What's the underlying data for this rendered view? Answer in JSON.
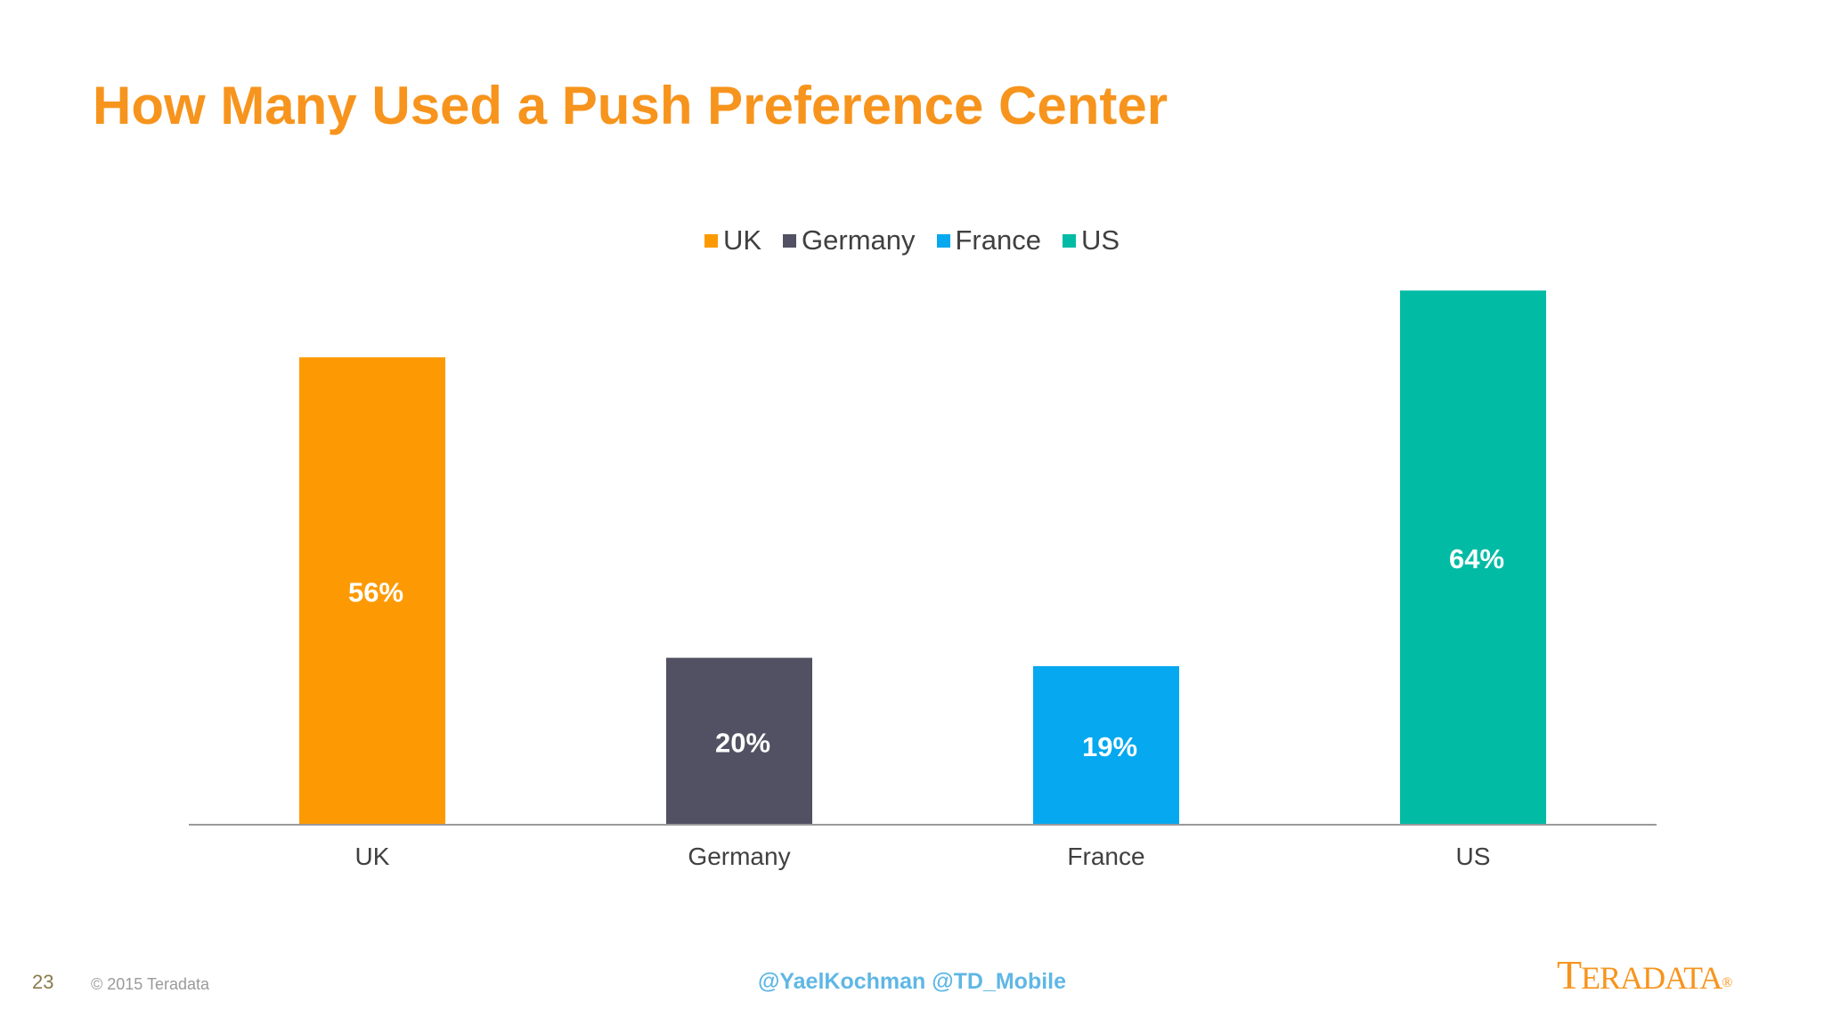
{
  "slide": {
    "title": "How Many Used a Push Preference Center",
    "page_number": "23",
    "copyright": "© 2015 Teradata",
    "handles": "@YaelKochman @TD_Mobile",
    "logo": {
      "lead": "T",
      "rest": "ERADATA",
      "mark": "®"
    }
  },
  "colors": {
    "title": "#f7941d",
    "UK": "#fd9a03",
    "Germany": "#525163",
    "France": "#06a8ef",
    "US": "#01bba5",
    "axis": "#9a9a9a"
  },
  "chart_data": {
    "type": "bar",
    "title": "",
    "categories": [
      "UK",
      "Germany",
      "France",
      "US"
    ],
    "values": [
      56,
      20,
      19,
      64
    ],
    "value_labels": [
      "56%",
      "20%",
      "19%",
      "64%"
    ],
    "unit": "%",
    "ylim": [
      0,
      70
    ],
    "legend": {
      "position": "top-center",
      "entries": [
        "UK",
        "Germany",
        "France",
        "US"
      ]
    },
    "grid": false,
    "xlabel": "",
    "ylabel": ""
  }
}
